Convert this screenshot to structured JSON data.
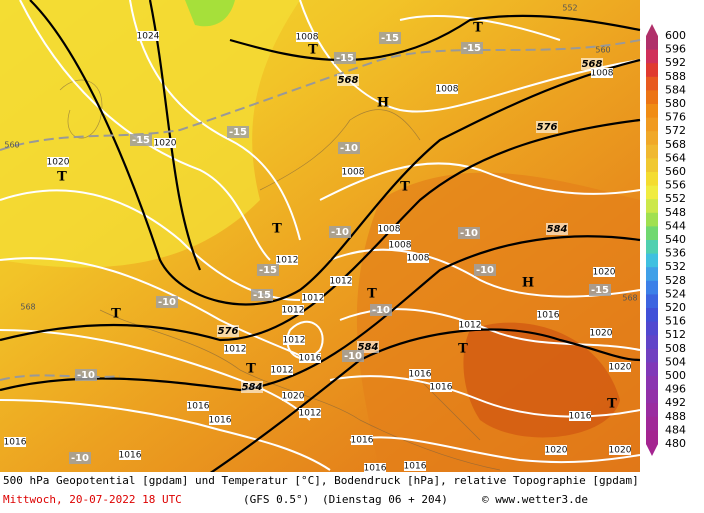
{
  "labels": {
    "pressure": [
      "1024",
      "1020",
      "1020",
      "1008",
      "1008",
      "1008",
      "1008",
      "1008",
      "1008",
      "1012",
      "1012",
      "1012",
      "1012",
      "1012",
      "1012",
      "1012",
      "1012",
      "1012",
      "1016",
      "1016",
      "1016",
      "1016",
      "1016",
      "1016",
      "1016",
      "1016",
      "1016",
      "1016",
      "1016",
      "1016",
      "1020",
      "1020",
      "1020",
      "1020",
      "1020",
      "1020",
      "1008"
    ],
    "geopotential": [
      "568",
      "568",
      "576",
      "576",
      "584",
      "584",
      "584"
    ],
    "temperature": [
      "-15",
      "-15",
      "-15",
      "-15",
      "-15",
      "-10",
      "-15",
      "-10",
      "-10",
      "-10",
      "-15",
      "-10",
      "-10",
      "-10",
      "-10",
      "-10",
      "-15"
    ],
    "topography": [
      "560",
      "560",
      "568",
      "568",
      "552"
    ],
    "symbols": [
      "T",
      "T",
      "T",
      "T",
      "T",
      "T",
      "T",
      "T",
      "T",
      "T",
      "H",
      "H"
    ]
  },
  "colorbar": {
    "labels": [
      "600",
      "596",
      "592",
      "588",
      "584",
      "580",
      "576",
      "572",
      "568",
      "564",
      "560",
      "556",
      "552",
      "548",
      "544",
      "540",
      "536",
      "532",
      "528",
      "524",
      "520",
      "516",
      "512",
      "508",
      "504",
      "500",
      "496",
      "492",
      "488",
      "484",
      "480"
    ],
    "colors": [
      "#b0306a",
      "#d0305a",
      "#e03a30",
      "#e85a20",
      "#ec7414",
      "#f08c14",
      "#f09a20",
      "#f0a828",
      "#f0b830",
      "#f0c830",
      "#f4dc30",
      "#f0ec40",
      "#cce84a",
      "#a0e050",
      "#70d870",
      "#50d0b0",
      "#40c0e0",
      "#40a0e8",
      "#3c80e8",
      "#3c64e0",
      "#4050d8",
      "#5048d0",
      "#6044c8",
      "#7040c0",
      "#8038b8",
      "#8a34b0",
      "#9230a8",
      "#9a2ca0",
      "#a02898",
      "#a42490"
    ]
  },
  "footer": {
    "line1": "500 hPa Geopotential [gpdam] und Temperatur [°C], Bodendruck [hPa], relative Topographie [gpdam]",
    "date": "Mittwoch, 20-07-2022  18 UTC",
    "model": "(GFS 0.5°)",
    "run": "(Dienstag 06 + 204)",
    "site": "© www.wetter3.de"
  }
}
